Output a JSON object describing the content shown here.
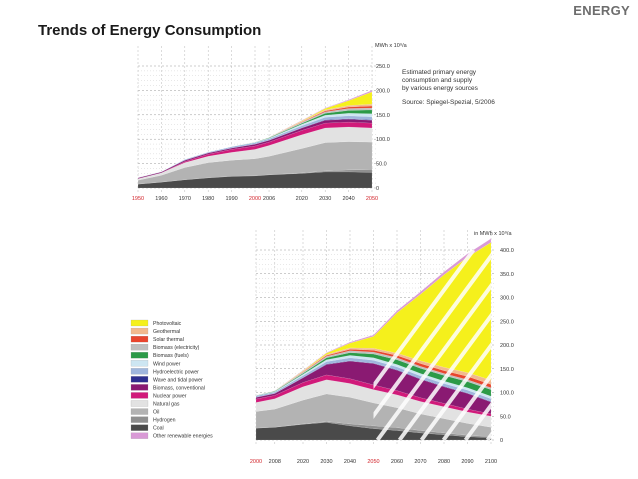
{
  "header": {
    "brand": "ENERGY",
    "title": "Trends of Energy Consumption"
  },
  "chart_data": [
    {
      "type": "area",
      "title": "Estimated primary energy consumption and supply by various energy sources",
      "title_lines": [
        "Estimated primary energy",
        "consumption and supply",
        "by various energy sources"
      ],
      "source": "Source: Spiegel-Spezial, 5/2006",
      "ylabel": "MWh x 10⁹/a",
      "ylim": [
        0,
        250
      ],
      "yticks": [
        0,
        50.0,
        100.0,
        150.0,
        200.0,
        250.0
      ],
      "ytick_labels": [
        "0",
        "50.0",
        "100.0",
        "150.0",
        "200.0",
        "250.0"
      ],
      "x": [
        1950,
        1960,
        1970,
        1980,
        1990,
        2000,
        2006,
        2020,
        2030,
        2040,
        2050
      ],
      "xtick_labels": [
        "1950",
        "1960",
        "1970",
        "1980",
        "1990",
        "2000",
        "2006",
        "2020",
        "2030",
        "2040",
        "2050"
      ],
      "highlight_ticks": [
        "1950",
        "2000",
        "2050"
      ],
      "series": [
        {
          "name": "Coal",
          "color": "#4a4a4a",
          "values": [
            8,
            12,
            17,
            21,
            24,
            25,
            27,
            30,
            33,
            33,
            32
          ]
        },
        {
          "name": "Hydrogen",
          "color": "#8f8f8f",
          "values": [
            0,
            0,
            0,
            0,
            0,
            0,
            0,
            1,
            2,
            4,
            6
          ]
        },
        {
          "name": "Oil",
          "color": "#b3b3b3",
          "values": [
            8,
            14,
            25,
            31,
            33,
            35,
            38,
            50,
            58,
            58,
            56
          ]
        },
        {
          "name": "Natural gas",
          "color": "#e2e2e2",
          "values": [
            3,
            5,
            10,
            13,
            16,
            19,
            22,
            28,
            30,
            30,
            29
          ]
        },
        {
          "name": "Nuclear power",
          "color": "#d11a7a",
          "values": [
            0,
            0,
            2,
            4,
            6,
            7,
            7,
            9,
            10,
            10,
            10
          ]
        },
        {
          "name": "Biomass, conventional",
          "color": "#8a1a72",
          "values": [
            2,
            2,
            3,
            3,
            3,
            4,
            4,
            5,
            6,
            6,
            6
          ]
        },
        {
          "name": "Wave and tidal power",
          "color": "#2d2f8f",
          "values": [
            0,
            0,
            0,
            0,
            0,
            0,
            0,
            0.5,
            1,
            1,
            1
          ]
        },
        {
          "name": "Hydroelectric power",
          "color": "#9fb6dd",
          "values": [
            1,
            1,
            2,
            2,
            3,
            3,
            3,
            4,
            5,
            6,
            6
          ]
        },
        {
          "name": "Wind power",
          "color": "#cde6f2",
          "values": [
            0,
            0,
            0,
            0,
            0,
            0.5,
            1,
            3,
            4,
            5,
            6
          ]
        },
        {
          "name": "Biomass (fuels)",
          "color": "#2c9a48",
          "values": [
            0,
            0,
            0,
            0,
            0,
            0.5,
            1,
            2,
            4,
            6,
            8
          ]
        },
        {
          "name": "Biomass (electricity)",
          "color": "#bfbfbf",
          "values": [
            0,
            0,
            0,
            0,
            0,
            0.5,
            1,
            2,
            3,
            4,
            4
          ]
        },
        {
          "name": "Solar thermal",
          "color": "#e8452e",
          "values": [
            0,
            0,
            0,
            0,
            0,
            0,
            0,
            1,
            2,
            3,
            4
          ]
        },
        {
          "name": "Geothermal",
          "color": "#f2b98e",
          "values": [
            0,
            0,
            0,
            0,
            0,
            0,
            0,
            1,
            2,
            3,
            4
          ]
        },
        {
          "name": "Photovoltaic",
          "color": "#f5f01c",
          "values": [
            0,
            0,
            0,
            0,
            0,
            0,
            0,
            1,
            3,
            10,
            25
          ]
        },
        {
          "name": "Other renewable energies",
          "color": "#d99ad6",
          "values": [
            0,
            0,
            0,
            0,
            0,
            0,
            0,
            1,
            1,
            2,
            3
          ]
        }
      ]
    },
    {
      "type": "area",
      "title": "",
      "ylabel": "in MWh x 10⁹/a",
      "ylim": [
        0,
        400
      ],
      "yticks": [
        0,
        50.0,
        100.0,
        150.0,
        200.0,
        250.0,
        300.0,
        350.0,
        400.0
      ],
      "ytick_labels": [
        "0",
        "50.0",
        "100.0",
        "150.0",
        "200.0",
        "250.0",
        "300.0",
        "350.0",
        "400.0"
      ],
      "x": [
        2000,
        2008,
        2020,
        2030,
        2040,
        2050,
        2060,
        2070,
        2080,
        2090,
        2100
      ],
      "xtick_labels": [
        "2000",
        "2008",
        "2020",
        "2030",
        "2040",
        "2050",
        "2060",
        "2070",
        "2080",
        "2090",
        "2100"
      ],
      "highlight_ticks": [
        "2000",
        "2050"
      ],
      "series": [
        {
          "name": "Coal",
          "color": "#4a4a4a",
          "values": [
            25,
            27,
            33,
            37,
            30,
            24,
            20,
            15,
            11,
            7,
            5
          ]
        },
        {
          "name": "Hydrogen",
          "color": "#8f8f8f",
          "values": [
            0,
            0,
            1,
            2,
            4,
            6,
            6,
            5,
            4,
            3,
            2
          ]
        },
        {
          "name": "Oil",
          "color": "#b3b3b3",
          "values": [
            35,
            38,
            50,
            58,
            56,
            48,
            42,
            35,
            30,
            25,
            20
          ]
        },
        {
          "name": "Natural gas",
          "color": "#e2e2e2",
          "values": [
            19,
            22,
            28,
            30,
            29,
            28,
            27,
            26,
            25,
            24,
            23
          ]
        },
        {
          "name": "Nuclear power",
          "color": "#d11a7a",
          "values": [
            7,
            7,
            9,
            10,
            10,
            10,
            9,
            8,
            7,
            6,
            5
          ]
        },
        {
          "name": "Biomass, conventional",
          "color": "#8a1a72",
          "values": [
            4,
            4,
            10,
            22,
            37,
            45,
            43,
            39,
            35,
            33,
            25
          ]
        },
        {
          "name": "Wave and tidal power",
          "color": "#2d2f8f",
          "values": [
            0,
            0,
            0.5,
            1,
            1,
            1,
            1,
            1,
            1,
            1,
            1
          ]
        },
        {
          "name": "Hydroelectric power",
          "color": "#9fb6dd",
          "values": [
            3,
            3,
            4,
            5,
            6,
            6,
            6,
            6,
            6,
            6,
            6
          ]
        },
        {
          "name": "Wind power",
          "color": "#cde6f2",
          "values": [
            0.5,
            1,
            3,
            4,
            5,
            5,
            5,
            5,
            5,
            5,
            5
          ]
        },
        {
          "name": "Biomass (fuels)",
          "color": "#2c9a48",
          "values": [
            0.5,
            1,
            2,
            4,
            6,
            8,
            10,
            11,
            12,
            13,
            14
          ]
        },
        {
          "name": "Biomass (electricity)",
          "color": "#bfbfbf",
          "values": [
            0.5,
            1,
            2,
            3,
            4,
            4,
            4,
            4,
            4,
            4,
            4
          ]
        },
        {
          "name": "Solar thermal",
          "color": "#e8452e",
          "values": [
            0,
            0,
            1,
            2,
            3,
            4,
            5,
            6,
            6,
            7,
            7
          ]
        },
        {
          "name": "Geothermal",
          "color": "#f2b98e",
          "values": [
            0,
            0,
            1,
            2,
            3,
            4,
            5,
            6,
            7,
            8,
            9
          ]
        },
        {
          "name": "Photovoltaic",
          "color": "#f5f01c",
          "values": [
            0,
            0,
            1,
            3,
            10,
            25,
            85,
            140,
            195,
            243,
            290
          ]
        },
        {
          "name": "Other renewable energies",
          "color": "#d99ad6",
          "values": [
            0,
            0,
            1,
            1,
            2,
            3,
            4,
            5,
            6,
            7,
            8
          ]
        }
      ]
    }
  ],
  "legend": {
    "items": [
      {
        "label": "Photovoltaic",
        "color": "#f5f01c"
      },
      {
        "label": "Geothermal",
        "color": "#f2b98e"
      },
      {
        "label": "Solar thermal",
        "color": "#e8452e"
      },
      {
        "label": "Biomass (electricity)",
        "color": "#bfbfbf"
      },
      {
        "label": "Biomass (fuels)",
        "color": "#2c9a48"
      },
      {
        "label": "Wind power",
        "color": "#cde6f2"
      },
      {
        "label": "Hydroelectric power",
        "color": "#9fb6dd"
      },
      {
        "label": "Wave and tidal power",
        "color": "#2d2f8f"
      },
      {
        "label": "Biomass, conventional",
        "color": "#8a1a72"
      },
      {
        "label": "Nuclear power",
        "color": "#d11a7a"
      },
      {
        "label": "Natural gas",
        "color": "#e2e2e2"
      },
      {
        "label": "Oil",
        "color": "#b3b3b3"
      },
      {
        "label": "Hydrogen",
        "color": "#8f8f8f"
      },
      {
        "label": "Coal",
        "color": "#4a4a4a"
      },
      {
        "label": "Other renewable energies",
        "color": "#d99ad6"
      }
    ]
  }
}
